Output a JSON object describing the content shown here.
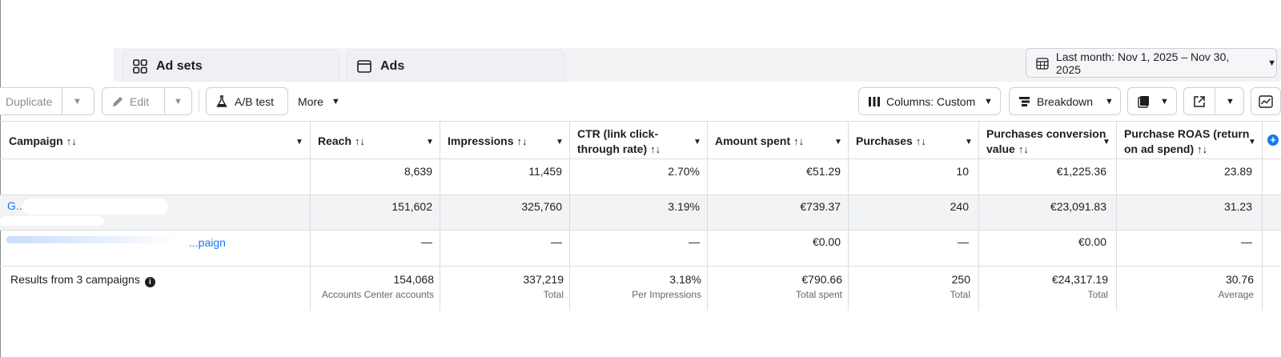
{
  "tabs": [
    {
      "label": "Ad sets",
      "icon": "ad-sets-icon"
    },
    {
      "label": "Ads",
      "icon": "ads-icon"
    }
  ],
  "date_range": {
    "label": "Last month: Nov 1, 2025 – Nov 30, 2025",
    "icon": "calendar-icon"
  },
  "toolbar": {
    "duplicate_label": "Duplicate",
    "edit_label": "Edit",
    "ab_test_label": "A/B test",
    "more_label": "More",
    "columns_label": "Columns: Custom",
    "breakdown_label": "Breakdown"
  },
  "table": {
    "sort_glyph": "↑↓",
    "headers": {
      "campaign": "Campaign",
      "reach": "Reach",
      "impressions": "Impressions",
      "ctr_line1": "CTR (link click-",
      "ctr_line2": "through rate)",
      "amount_spent": "Amount spent",
      "purchases": "Purchases",
      "pcv_line1": "Purchases conversion",
      "pcv_line2": "value",
      "roas_line1": "Purchase ROAS (return",
      "roas_line2": "on ad spend)"
    },
    "rows": [
      {
        "campaign": "",
        "reach": "8,639",
        "impressions": "11,459",
        "ctr": "2.70%",
        "amount_spent": "€51.29",
        "purchases": "10",
        "pcv": "€1,225.36",
        "roas": "23.89"
      },
      {
        "campaign": "G...",
        "reach": "151,602",
        "impressions": "325,760",
        "ctr": "3.19%",
        "amount_spent": "€739.37",
        "purchases": "240",
        "pcv": "€23,091.83",
        "roas": "31.23"
      },
      {
        "campaign": "...paign",
        "reach": "—",
        "impressions": "—",
        "ctr": "—",
        "amount_spent": "€0.00",
        "purchases": "—",
        "pcv": "€0.00",
        "roas": "—"
      }
    ],
    "totals": {
      "label": "Results from 3 campaigns",
      "reach": "154,068",
      "reach_sub": "Accounts Center accounts",
      "impressions": "337,219",
      "impressions_sub": "Total",
      "ctr": "3.18%",
      "ctr_sub": "Per Impressions",
      "amount_spent": "€790.66",
      "amount_spent_sub": "Total spent",
      "purchases": "250",
      "purchases_sub": "Total",
      "pcv": "€24,317.19",
      "pcv_sub": "Total",
      "roas": "30.76",
      "roas_sub": "Average"
    }
  }
}
